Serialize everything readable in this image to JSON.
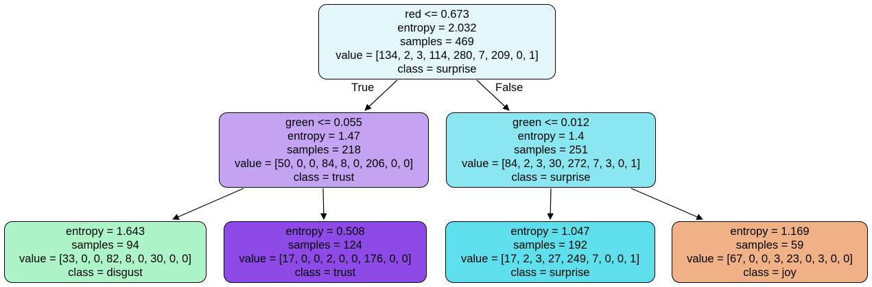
{
  "tree": {
    "edge_labels": {
      "true": "True",
      "false": "False"
    },
    "nodes": [
      {
        "id": "root",
        "color": "#e3f7fa",
        "lines": [
          "red <= 0.673",
          "entropy = 2.032",
          "samples = 469",
          "value = [134, 2, 3, 114, 280, 7, 209, 0, 1]",
          "class = surprise"
        ]
      },
      {
        "id": "left",
        "color": "#c4a3f2",
        "lines": [
          "green <= 0.055",
          "entropy = 1.47",
          "samples = 218",
          "value = [50, 0, 0, 84, 8, 0, 206, 0, 0]",
          "class = trust"
        ]
      },
      {
        "id": "right",
        "color": "#8ae6f0",
        "lines": [
          "green <= 0.012",
          "entropy = 1.4",
          "samples = 251",
          "value = [84, 2, 3, 30, 272, 7, 3, 0, 1]",
          "class = surprise"
        ]
      },
      {
        "id": "left-left",
        "color": "#aef4c9",
        "lines": [
          "entropy = 1.643",
          "samples = 94",
          "value = [33, 0, 0, 82, 8, 0, 30, 0, 0]",
          "class = disgust"
        ]
      },
      {
        "id": "left-right",
        "color": "#8e4ae6",
        "lines": [
          "entropy = 0.508",
          "samples = 124",
          "value = [17, 0, 0, 2, 0, 0, 176, 0, 0]",
          "class = trust"
        ]
      },
      {
        "id": "right-left",
        "color": "#5fdfeb",
        "lines": [
          "entropy = 1.047",
          "samples = 192",
          "value = [17, 2, 3, 27, 249, 7, 0, 0, 1]",
          "class = surprise"
        ]
      },
      {
        "id": "right-right",
        "color": "#efb185",
        "lines": [
          "entropy = 1.169",
          "samples = 59",
          "value = [67, 0, 0, 3, 23, 0, 3, 0, 0]",
          "class = joy"
        ]
      }
    ]
  }
}
